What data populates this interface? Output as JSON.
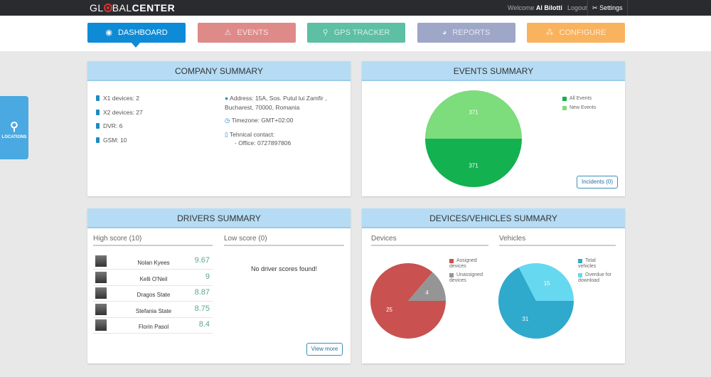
{
  "header": {
    "logo_pre": "GL",
    "logo_mid": "BAL",
    "logo_bold": "CENTER",
    "welcome": "Welcome",
    "user": "Al Bilotti",
    "logout": "Logout",
    "settings": "Settings"
  },
  "nav": [
    {
      "label": "DASHBOARD",
      "icon": "dashboard-icon",
      "color": "#0e8bd6",
      "active": true
    },
    {
      "label": "EVENTS",
      "icon": "warning-icon",
      "color": "#de8a89"
    },
    {
      "label": "GPS TRACKER",
      "icon": "map-pin-icon",
      "color": "#5dbfa3"
    },
    {
      "label": "REPORTS",
      "icon": "pie-chart-icon",
      "color": "#9ea7c8"
    },
    {
      "label": "CONFIGURE",
      "icon": "sitemap-icon",
      "color": "#f9b25d"
    }
  ],
  "locations_tab": "LOCATIONS",
  "company": {
    "title": "COMPANY SUMMARY",
    "devices": [
      "X1 devices: 2",
      "X2 devices: 27",
      "DVR: 6",
      "GSM: 10"
    ],
    "address1": "Address: 15A, Sos. Putul lui Zamfir ,",
    "address2": "Bucharest, 70000, Romania",
    "timezone": "Timezone: GMT+02:00",
    "contact": "Tehnical contact:",
    "office": "- Office: 0727897806"
  },
  "events": {
    "title": "EVENTS SUMMARY",
    "incidents": "Incidents (0)",
    "legend": [
      "All Events",
      "New Events"
    ]
  },
  "drivers": {
    "title": "DRIVERS SUMMARY",
    "high": "High score (10)",
    "low": "Low score (0)",
    "empty": "No driver scores found!",
    "view_more": "View more",
    "list": [
      {
        "name": "Nolan Kyees",
        "score": "9.67"
      },
      {
        "name": "Kelli O'Neil",
        "score": "9"
      },
      {
        "name": "Dragos State",
        "score": "8.87"
      },
      {
        "name": "Stefania State",
        "score": "8.75"
      },
      {
        "name": "Florin Pasol",
        "score": "8.4"
      }
    ]
  },
  "devices": {
    "title": "DEVICES/VEHICLES SUMMARY",
    "devices_label": "Devices",
    "vehicles_label": "Vehicles",
    "devices_legend": [
      "Assigned devices",
      "Unassigned devices"
    ],
    "vehicles_legend": [
      "Total vehicles",
      "Overdue for download"
    ]
  },
  "chart_data": [
    {
      "type": "pie",
      "series": [
        {
          "name": "All Events",
          "values": [
            371
          ],
          "color": "#13b150"
        },
        {
          "name": "New Events",
          "values": [
            371
          ],
          "color": "#7ddc7c"
        }
      ],
      "legend": "right"
    },
    {
      "type": "pie",
      "categories": [
        "Assigned devices",
        "Unassigned devices"
      ],
      "values": [
        25,
        4
      ],
      "colors": [
        "#c9514f",
        "#959595"
      ],
      "legend": "right"
    },
    {
      "type": "pie",
      "categories": [
        "Total vehicles",
        "Overdue for download"
      ],
      "values": [
        31,
        15
      ],
      "colors": [
        "#2fa9cc",
        "#66d8ef"
      ],
      "legend": "right"
    }
  ]
}
